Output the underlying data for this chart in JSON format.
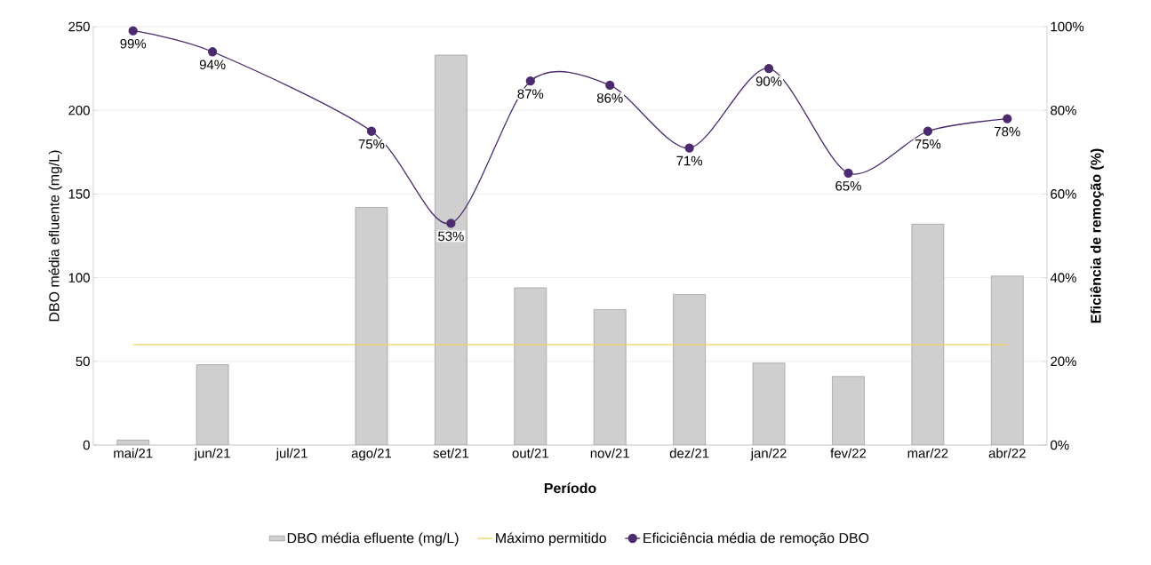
{
  "chart_data": {
    "type": "bar",
    "xlabel": "Período",
    "ylabel": "DBO média efluente (mg/L)",
    "y2label": "Eficiência de remoção (%)",
    "categories": [
      "mai/21",
      "jun/21",
      "jul/21",
      "ago/21",
      "set/21",
      "out/21",
      "nov/21",
      "dez/21",
      "jan/22",
      "fev/22",
      "mar/22",
      "abr/22"
    ],
    "series": [
      {
        "name": "DBO média efluente (mg/L)",
        "color": "#d0cfd0",
        "values": [
          3,
          48,
          null,
          142,
          233,
          94,
          81,
          90,
          49,
          41,
          132,
          101
        ]
      },
      {
        "name": "Máximo permitido",
        "type": "line",
        "color": "#f5d35a",
        "values": [
          60,
          60,
          60,
          60,
          60,
          60,
          60,
          60,
          60,
          60,
          60,
          60
        ]
      },
      {
        "name": "Eficiciência média de remoção DBO",
        "type": "line",
        "axis": "y2",
        "color": "#4b2a6e",
        "marker": "circle",
        "values": [
          99,
          94,
          null,
          75,
          53,
          87,
          86,
          71,
          90,
          65,
          75,
          78
        ],
        "value_labels": [
          "99%",
          "94%",
          null,
          "75%",
          "53%",
          "87%",
          "86%",
          "71%",
          "90%",
          "65%",
          "75%",
          "78%"
        ]
      }
    ],
    "ylim": [
      0,
      250
    ],
    "yticks": [
      0,
      50,
      100,
      150,
      200,
      250
    ],
    "y2lim": [
      0,
      100
    ],
    "y2ticks": [
      {
        "value": 0,
        "label": "0%"
      },
      {
        "value": 20,
        "label": "20%"
      },
      {
        "value": 40,
        "label": "40%"
      },
      {
        "value": 60,
        "label": "60%"
      },
      {
        "value": 80,
        "label": "80%"
      },
      {
        "value": 100,
        "label": "100%"
      }
    ],
    "grid": "y",
    "legend": "bottom"
  }
}
